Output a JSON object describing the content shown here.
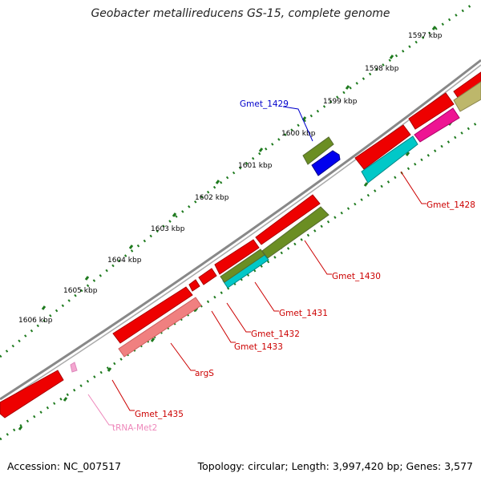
{
  "title": "Geobacter metallireducens GS-15, complete genome",
  "footer": {
    "accession": "Accession: NC_007517",
    "topology": "Topology: circular; Length: 3,997,420 bp; Genes: 3,577"
  },
  "colors": {
    "backbone": "#888888",
    "tick": "#1e7a1e",
    "red_gene": "#ee0000",
    "olive_gene": "#6b8e23",
    "cyan_gene": "#00c8c8",
    "blue_gene": "#0000ee",
    "magenta_gene": "#ee1493",
    "salmon_gene": "#f08080",
    "khaki_gene": "#bdb76b",
    "pink_trna": "#f4a6d0",
    "label_red": "#cc0000",
    "label_blue": "#0000cc",
    "label_pink": "#ee88bb"
  },
  "ticks": [
    {
      "label": "1597 kbp"
    },
    {
      "label": "1598 kbp"
    },
    {
      "label": "1599 kbp"
    },
    {
      "label": "1600 kbp"
    },
    {
      "label": "1601 kbp"
    },
    {
      "label": "1602 kbp"
    },
    {
      "label": "1603 kbp"
    },
    {
      "label": "1604 kbp"
    },
    {
      "label": "1605 kbp"
    },
    {
      "label": "1606 kbp"
    }
  ],
  "gene_labels": [
    {
      "text": "Gmet_1429",
      "color": "blue"
    },
    {
      "text": "Gmet_1428",
      "color": "red"
    },
    {
      "text": "Gmet_1430",
      "color": "red"
    },
    {
      "text": "Gmet_1431",
      "color": "red"
    },
    {
      "text": "Gmet_1432",
      "color": "red"
    },
    {
      "text": "Gmet_1433",
      "color": "red"
    },
    {
      "text": "argS",
      "color": "red"
    },
    {
      "text": "Gmet_1435",
      "color": "red"
    },
    {
      "text": "tRNA-Met2",
      "color": "pink"
    }
  ]
}
